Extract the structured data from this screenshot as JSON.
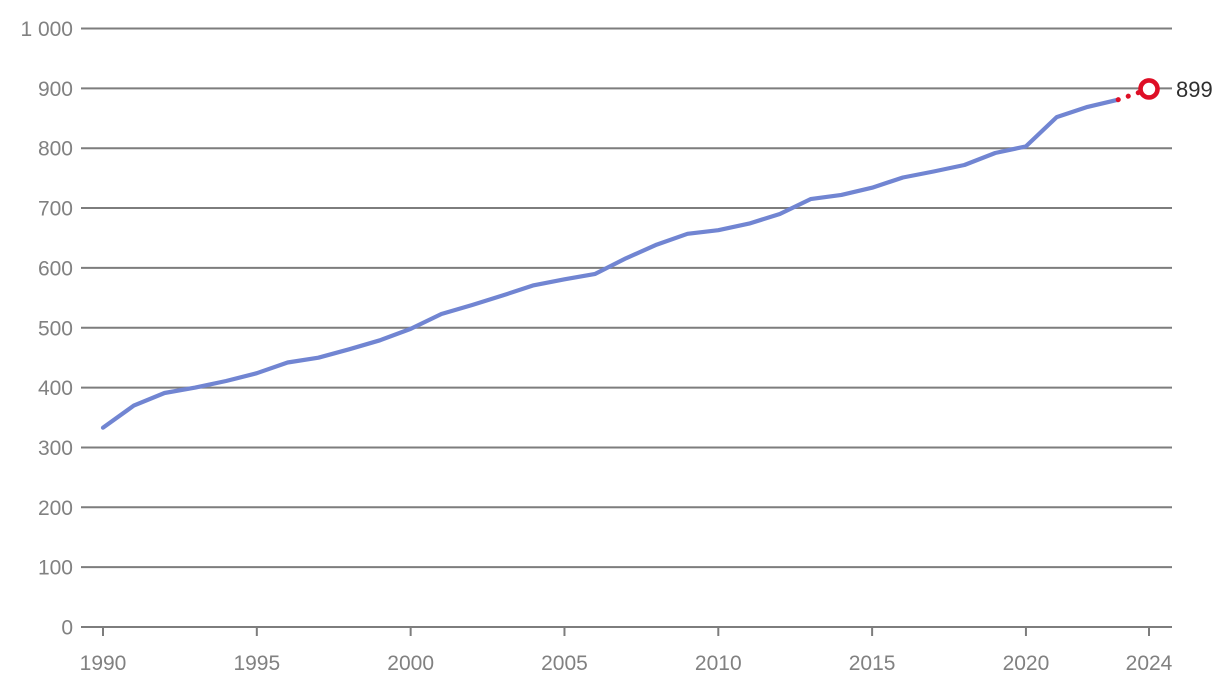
{
  "chart_data": {
    "type": "line",
    "title": "",
    "xlabel": "",
    "ylabel": "",
    "xlim": [
      1990,
      2024
    ],
    "ylim": [
      0,
      1000
    ],
    "grid": "horizontal",
    "legend": "none",
    "yticks": [
      {
        "value": 0,
        "label": "0"
      },
      {
        "value": 100,
        "label": "100"
      },
      {
        "value": 200,
        "label": "200"
      },
      {
        "value": 300,
        "label": "300"
      },
      {
        "value": 400,
        "label": "400"
      },
      {
        "value": 500,
        "label": "500"
      },
      {
        "value": 600,
        "label": "600"
      },
      {
        "value": 700,
        "label": "700"
      },
      {
        "value": 800,
        "label": "800"
      },
      {
        "value": 900,
        "label": "900"
      },
      {
        "value": 1000,
        "label": "1 000"
      }
    ],
    "xticks": [
      {
        "value": 1990,
        "label": "1990"
      },
      {
        "value": 1995,
        "label": "1995"
      },
      {
        "value": 2000,
        "label": "2000"
      },
      {
        "value": 2005,
        "label": "2005"
      },
      {
        "value": 2010,
        "label": "2010"
      },
      {
        "value": 2015,
        "label": "2015"
      },
      {
        "value": 2020,
        "label": "2020"
      },
      {
        "value": 2024,
        "label": "2024"
      }
    ],
    "series": [
      {
        "name": "historical",
        "style": "solid",
        "color": "#7185d2",
        "years": [
          1990,
          1991,
          1992,
          1993,
          1994,
          1995,
          1996,
          1997,
          1998,
          1999,
          2000,
          2001,
          2002,
          2003,
          2004,
          2005,
          2006,
          2007,
          2008,
          2009,
          2010,
          2011,
          2012,
          2013,
          2014,
          2015,
          2016,
          2017,
          2018,
          2019,
          2020,
          2021,
          2022,
          2023
        ],
        "values": [
          333,
          370,
          391,
          400,
          411,
          424,
          442,
          450,
          464,
          479,
          498,
          523,
          538,
          554,
          571,
          581,
          590,
          616,
          639,
          657,
          663,
          674,
          690,
          715,
          722,
          734,
          751,
          761,
          772,
          792,
          803,
          852,
          869,
          881
        ]
      },
      {
        "name": "projection",
        "style": "dotted",
        "color": "#de0f26",
        "years": [
          2023,
          2024
        ],
        "values": [
          881,
          899
        ]
      }
    ],
    "end_marker": {
      "year": 2024,
      "value": 899,
      "label": "899",
      "ring_color": "#de0f26",
      "fill_color": "#ffffff"
    },
    "colors": {
      "grid": "#7d7d7d",
      "axis": "#7d7d7d",
      "tick_label": "#818181",
      "end_label": "#2f2f2f",
      "background": "#ffffff"
    }
  }
}
